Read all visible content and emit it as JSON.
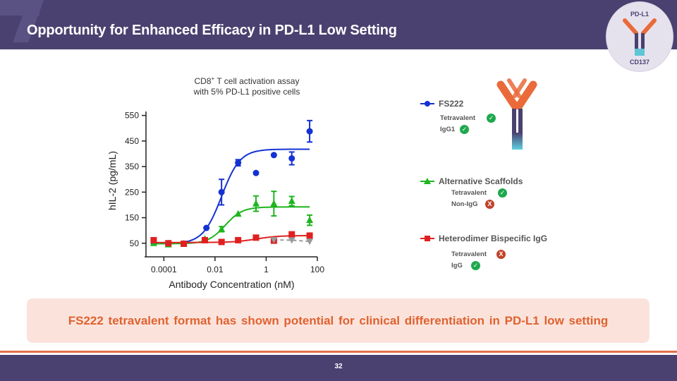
{
  "header": {
    "title": "Opportunity for Enhanced Efficacy in PD-L1 Low Setting"
  },
  "badge": {
    "top": "PD-L1",
    "bottom": "CD137"
  },
  "assay_title": {
    "line1_prefix": "CD8",
    "line1_sup": "+",
    "line1_suffix": " T cell activation assay",
    "line2": "with 5% PD-L1 positive cells"
  },
  "chart_data": {
    "type": "scatter",
    "xlabel": "Antibody Concentration (nM)",
    "ylabel": "hIL-2 (pg/mL)",
    "x_scale": "log",
    "xlim": [
      2e-05,
      100
    ],
    "ylim": [
      30,
      560
    ],
    "x_ticks": [
      0.0001,
      0.01,
      1,
      100
    ],
    "x_tick_labels": [
      "0.0001",
      "0.01",
      "1",
      "100"
    ],
    "y_ticks": [
      50,
      150,
      250,
      350,
      450,
      550
    ],
    "legend_position": "right",
    "series": [
      {
        "name": "FS222",
        "color": "#1432d2",
        "marker": "circle",
        "x": [
          4e-05,
          0.00015,
          0.0006,
          0.0046,
          0.018,
          0.08,
          0.4,
          2.0,
          10,
          50
        ],
        "y": [
          52,
          50,
          48,
          110,
          250,
          365,
          325,
          395,
          382,
          488
        ],
        "err": [
          0,
          0,
          0,
          0,
          50,
          12,
          0,
          0,
          25,
          42
        ],
        "fit": {
          "bottom": 48,
          "top": 418,
          "ec50": 0.018,
          "hill": 1.2
        }
      },
      {
        "name": "Alternative Scaffolds",
        "color": "#1fb51f",
        "marker": "triangle",
        "x": [
          4e-05,
          0.00015,
          0.0006,
          0.004,
          0.018,
          0.08,
          0.4,
          2.0,
          10,
          50
        ],
        "y": [
          50,
          45,
          48,
          67,
          105,
          165,
          205,
          205,
          215,
          140
        ],
        "err": [
          0,
          0,
          0,
          0,
          10,
          0,
          30,
          48,
          18,
          20
        ],
        "fit": {
          "bottom": 48,
          "top": 192,
          "ec50": 0.025,
          "hill": 1.3
        }
      },
      {
        "name": "Heterodimer Bispecific IgG",
        "color": "#e02020",
        "marker": "square",
        "x": [
          4e-05,
          0.00015,
          0.0006,
          0.004,
          0.018,
          0.08,
          0.4,
          2.0,
          10,
          50
        ],
        "y": [
          62,
          50,
          48,
          62,
          55,
          62,
          72,
          60,
          85,
          80
        ],
        "err": [
          0,
          0,
          0,
          0,
          0,
          0,
          0,
          0,
          0,
          0
        ],
        "fit": {
          "bottom": 53,
          "top": 80,
          "ec50": 0.4,
          "hill": 1.0
        }
      },
      {
        "color": "#9a9a9a",
        "marker": "triangle-down",
        "dashed": true,
        "x": [
          2.0,
          10,
          50
        ],
        "y": [
          63,
          62,
          57
        ],
        "err": [
          0,
          0,
          0
        ]
      }
    ]
  },
  "legend": [
    {
      "label": "FS222",
      "features": [
        {
          "text": "Tetravalent",
          "ok": true
        },
        {
          "text": "IgG1",
          "ok": true
        }
      ]
    },
    {
      "label": "Alternative Scaffolds",
      "features": [
        {
          "text": "Tetravalent",
          "ok": true
        },
        {
          "text": "Non-IgG",
          "ok": false
        }
      ]
    },
    {
      "label": "Heterodimer Bispecific IgG",
      "features": [
        {
          "text": "Tetravalent",
          "ok": false
        },
        {
          "text": "IgG",
          "ok": true
        }
      ]
    }
  ],
  "marks": {
    "ok": "✓",
    "no": "X"
  },
  "callout": "FS222 tetravalent format has shown potential for clinical differentiation in PD-L1 low setting",
  "page_number": "32"
}
